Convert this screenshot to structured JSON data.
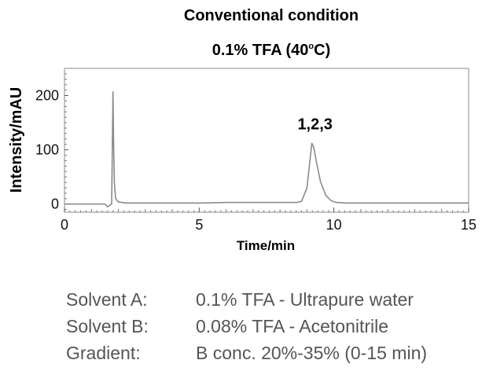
{
  "chart_data": {
    "type": "line",
    "title": "Conventional condition",
    "subtitle": "0.1% TFA (40°C)",
    "subtitle_parts": [
      "0.1% TFA (40",
      "o",
      "C)"
    ],
    "xlabel": "Time/min",
    "ylabel": "Intensity/mAU",
    "xlim": [
      0,
      15
    ],
    "ylim": [
      -15,
      250
    ],
    "xticks": [
      0,
      5,
      10,
      15
    ],
    "yticks": [
      0,
      100,
      200
    ],
    "grid": false,
    "legend": "none",
    "line_color": "#8a8a8a",
    "series": [
      {
        "x": [
          0.0,
          0.5,
          1.0,
          1.5,
          1.6,
          1.75,
          1.78,
          1.8,
          1.82,
          1.85,
          1.9,
          2.0,
          2.3,
          3.0,
          4.0,
          5.0,
          6.0,
          7.0,
          8.0,
          8.6,
          8.8,
          9.0,
          9.1,
          9.18,
          9.25,
          9.35,
          9.5,
          9.7,
          9.9,
          10.1,
          10.5,
          11.0,
          12.0,
          13.0,
          14.0,
          15.0
        ],
        "values": [
          0,
          0,
          0,
          0,
          -5,
          0,
          120,
          207,
          120,
          40,
          10,
          4,
          2,
          2,
          2,
          2,
          3,
          3,
          3,
          3,
          5,
          30,
          75,
          112,
          105,
          78,
          42,
          16,
          6,
          3,
          2,
          2,
          2,
          2,
          2,
          2
        ]
      }
    ],
    "annotations": [
      {
        "text": "1,2,3",
        "x": 9.3,
        "y": 148
      }
    ]
  },
  "conditions": [
    {
      "label": "Solvent A:",
      "value": "0.1% TFA - Ultrapure water"
    },
    {
      "label": "Solvent B:",
      "value": "0.08% TFA - Acetonitrile"
    },
    {
      "label": "Gradient:",
      "value": "B conc. 20%-35% (0-15 min)"
    }
  ]
}
